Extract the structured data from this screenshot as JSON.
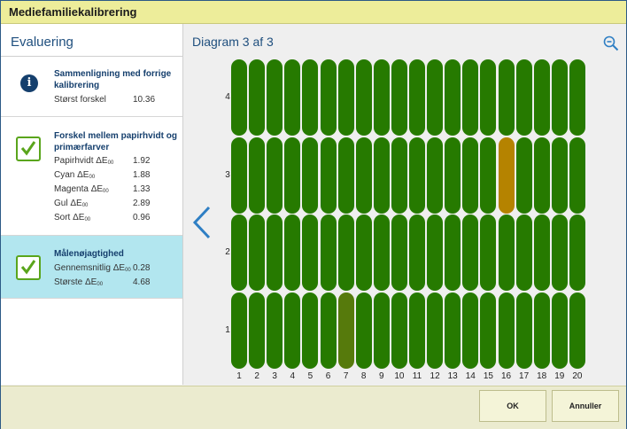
{
  "window": {
    "title": "Mediefamiliekalibrering"
  },
  "evaluation": {
    "heading": "Evaluering",
    "cards": [
      {
        "icon": "info-icon",
        "title": "Sammenligning med forrige kalibrering",
        "rows": [
          {
            "label": "Størst forskel",
            "sub": "",
            "value": "10.36"
          }
        ]
      },
      {
        "icon": "check-icon",
        "title": "Forskel mellem papirhvidt og primærfarver",
        "rows": [
          {
            "label": "Papirhvidt ΔE",
            "sub": "00",
            "value": "1.92"
          },
          {
            "label": "Cyan ΔE",
            "sub": "00",
            "value": "1.88"
          },
          {
            "label": "Magenta ΔE",
            "sub": "00",
            "value": "1.33"
          },
          {
            "label": "Gul ΔE",
            "sub": "00",
            "value": "2.89"
          },
          {
            "label": "Sort ΔE",
            "sub": "00",
            "value": "0.96"
          }
        ]
      },
      {
        "icon": "check-icon",
        "title": "Målenøjagtighed",
        "selected": true,
        "rows": [
          {
            "label": "Gennemsnitlig ΔE",
            "sub": "00",
            "value": "0.28"
          },
          {
            "label": "Største ΔE",
            "sub": "00",
            "value": "4.68"
          }
        ]
      }
    ]
  },
  "diagram": {
    "title": "Diagram 3 af 3",
    "zoom_icon": "zoom-out-icon",
    "prev_icon": "chevron-left-icon"
  },
  "chart_data": {
    "type": "heatmap",
    "x": [
      "1",
      "2",
      "3",
      "4",
      "5",
      "6",
      "7",
      "8",
      "9",
      "10",
      "11",
      "12",
      "13",
      "14",
      "15",
      "16",
      "17",
      "18",
      "19",
      "20"
    ],
    "y": [
      "1",
      "2",
      "3",
      "4"
    ],
    "colors": {
      "default": "#267a00",
      "warning": "#b58300",
      "minor": "#567a0c"
    },
    "highlights": [
      {
        "column": 16,
        "row": 3,
        "level": "warning"
      },
      {
        "column": 7,
        "row": 1,
        "level": "minor"
      }
    ]
  },
  "footer": {
    "ok_label": "OK",
    "cancel_label": "Annuller"
  }
}
